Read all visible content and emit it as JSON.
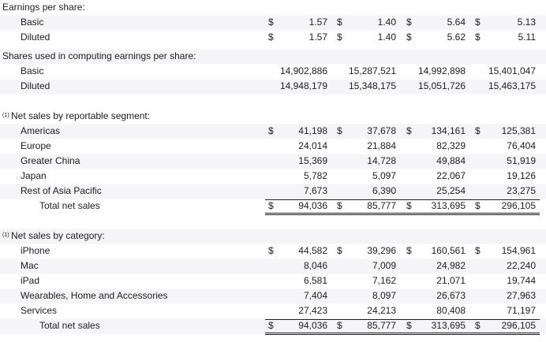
{
  "sections": [
    {
      "header": "Earnings per share:",
      "rows": [
        {
          "label": "Basic",
          "currency": "$",
          "values": [
            "1.57",
            "1.40",
            "5.64",
            "5.13"
          ]
        },
        {
          "label": "Diluted",
          "currency": "$",
          "values": [
            "1.57",
            "1.40",
            "5.62",
            "5.11"
          ]
        }
      ]
    },
    {
      "header": "Shares used in computing earnings per share:",
      "rows": [
        {
          "label": "Basic",
          "values": [
            "14,902,886",
            "15,287,521",
            "14,992,898",
            "15,401,047"
          ]
        },
        {
          "label": "Diluted",
          "values": [
            "14,948,179",
            "15,348,175",
            "15,051,726",
            "15,463,175"
          ]
        }
      ]
    },
    {
      "note": "(1)",
      "header": "Net sales by reportable segment:",
      "rows": [
        {
          "label": "Americas",
          "currency": "$",
          "values": [
            "41,198",
            "37,678",
            "134,161",
            "125,381"
          ]
        },
        {
          "label": "Europe",
          "values": [
            "24,014",
            "21,884",
            "82,329",
            "76,404"
          ]
        },
        {
          "label": "Greater China",
          "values": [
            "15,369",
            "14,728",
            "49,884",
            "51,919"
          ]
        },
        {
          "label": "Japan",
          "values": [
            "5,782",
            "5,097",
            "22,067",
            "19,126"
          ]
        },
        {
          "label": "Rest of Asia Pacific",
          "values": [
            "7,673",
            "6,390",
            "25,254",
            "23,275"
          ]
        },
        {
          "label": "Total net sales",
          "currency": "$",
          "total": true,
          "values": [
            "94,036",
            "85,777",
            "313,695",
            "296,105"
          ]
        }
      ]
    },
    {
      "note": "(1)",
      "header": "Net sales by category:",
      "rows": [
        {
          "label": "iPhone",
          "currency": "$",
          "values": [
            "44,582",
            "39,296",
            "160,561",
            "154,961"
          ]
        },
        {
          "label": "Mac",
          "values": [
            "8,046",
            "7,009",
            "24,982",
            "22,240"
          ]
        },
        {
          "label": "iPad",
          "values": [
            "6,581",
            "7,162",
            "21,071",
            "19,744"
          ]
        },
        {
          "label": "Wearables, Home and Accessories",
          "values": [
            "7,404",
            "8,097",
            "26,673",
            "27,963"
          ]
        },
        {
          "label": "Services",
          "values": [
            "27,423",
            "24,213",
            "80,408",
            "71,197"
          ]
        },
        {
          "label": "Total net sales",
          "currency": "$",
          "total": true,
          "values": [
            "94,036",
            "85,777",
            "313,695",
            "296,105"
          ]
        }
      ]
    }
  ]
}
